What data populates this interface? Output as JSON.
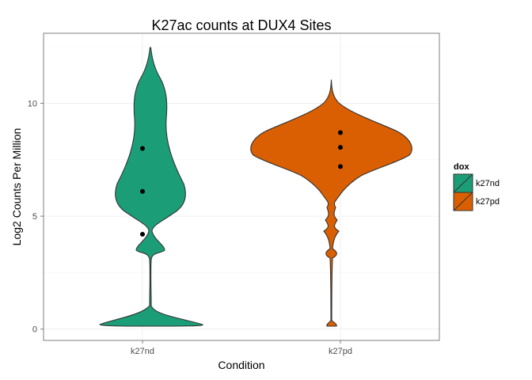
{
  "chart_data": {
    "type": "violin",
    "title": "K27ac counts at DUX4 Sites",
    "xlabel": "Condition",
    "ylabel": "Log2 Counts Per Million",
    "categories": [
      "k27nd",
      "k27pd"
    ],
    "ylim": [
      -0.5,
      13.1
    ],
    "yticks": [
      0,
      5,
      10
    ],
    "grid": true,
    "legend": {
      "title": "dox",
      "position": "right",
      "entries": [
        "k27nd",
        "k27pd"
      ]
    },
    "series": [
      {
        "name": "k27nd",
        "color": "#1b9e77",
        "range": [
          0.05,
          12.9
        ],
        "quantiles": [
          4.2,
          6.1,
          8.0
        ]
      },
      {
        "name": "k27pd",
        "color": "#d95f02",
        "range": [
          0.1,
          11.4
        ],
        "quantiles": [
          7.2,
          8.05,
          8.7
        ]
      }
    ]
  }
}
